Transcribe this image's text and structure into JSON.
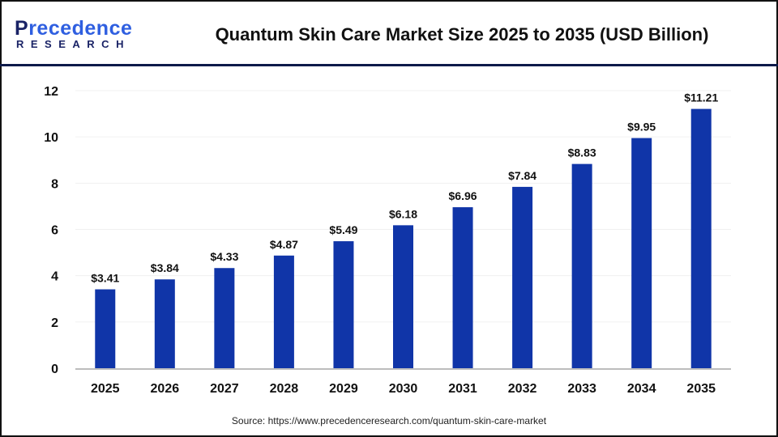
{
  "logo": {
    "main_prefix": "P",
    "main_rest": "recedence",
    "sub": "RESEARCH"
  },
  "chart_data": {
    "type": "bar",
    "title": "Quantum Skin Care Market Size 2025 to 2035 (USD Billion)",
    "categories": [
      "2025",
      "2026",
      "2027",
      "2028",
      "2029",
      "2030",
      "2031",
      "2032",
      "2033",
      "2034",
      "2035"
    ],
    "values": [
      3.41,
      3.84,
      4.33,
      4.87,
      5.49,
      6.18,
      6.96,
      7.84,
      8.83,
      9.95,
      11.21
    ],
    "data_labels": [
      "$3.41",
      "$3.84",
      "$4.33",
      "$4.87",
      "$5.49",
      "$6.18",
      "$6.96",
      "$7.84",
      "$8.83",
      "$9.95",
      "$11.21"
    ],
    "xlabel": "",
    "ylabel": "",
    "ylim": [
      0,
      12
    ],
    "yticks": [
      0,
      2,
      4,
      6,
      8,
      10,
      12
    ],
    "grid": false,
    "bar_color": "#1035a8"
  },
  "source": "Source: https://www.precedenceresearch.com/quantum-skin-care-market"
}
